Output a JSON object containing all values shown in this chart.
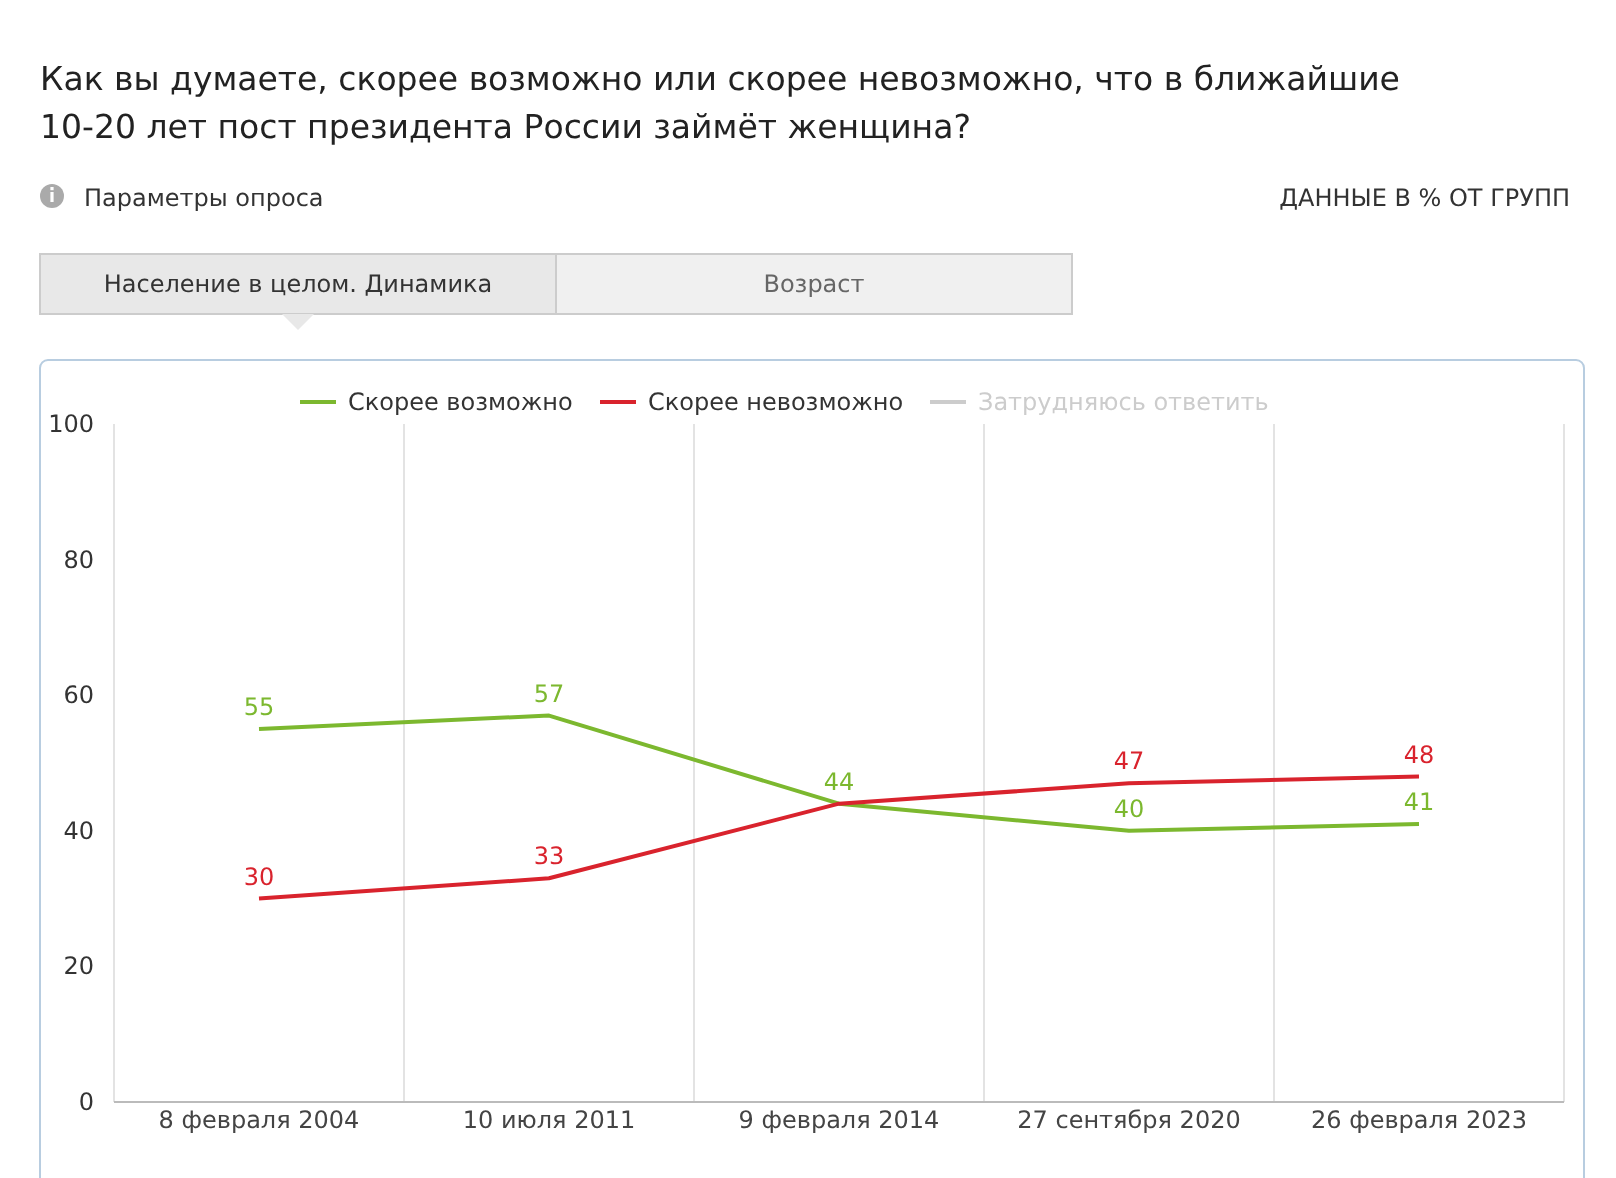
{
  "chart_data": {
    "type": "line",
    "title": "Как вы думаете, скорее возможно или скорее невозможно, что в ближайшие 10-20 лет пост президента России займёт женщина?",
    "annotations": [
      "Параметры опроса",
      "ДАННЫЕ В % ОТ ГРУПП",
      "Население в целом. Динамика",
      "Возраст"
    ],
    "categories": [
      "8 февраля 2004",
      "10 июля 2011",
      "9 февраля 2014",
      "27 сентября 2020",
      "26 февраля 2023"
    ],
    "series": [
      {
        "name": "Скорее возможно",
        "color": "#7cb82f",
        "values": [
          55,
          57,
          44,
          40,
          41
        ],
        "value_labels": [
          "55",
          "57",
          "44",
          "40",
          "41"
        ]
      },
      {
        "name": "Скорее невозможно",
        "color": "#d9232d",
        "values": [
          30,
          33,
          44,
          47,
          48
        ],
        "value_labels": [
          "30",
          "33",
          null,
          "47",
          "48"
        ]
      },
      {
        "name": "Затрудняюсь ответить",
        "color": "#cccccc",
        "values": [
          null,
          null,
          null,
          null,
          null
        ]
      }
    ],
    "ylim": [
      0,
      100
    ],
    "yticks": [
      0,
      20,
      40,
      60,
      80,
      100
    ],
    "grid": "x",
    "legend": "top",
    "marker": "none",
    "line_style": "solid"
  }
}
